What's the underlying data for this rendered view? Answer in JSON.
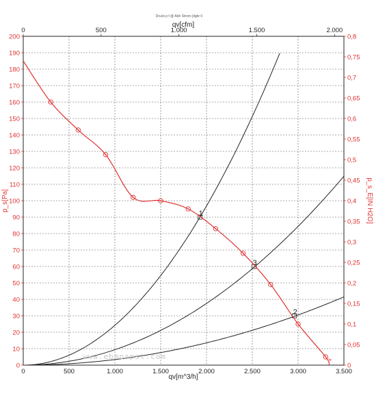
{
  "chart_data": {
    "type": "line",
    "title": "Druck p f @ Abh Strom (dgbr 0",
    "x_bottom": {
      "label": "qv[m^3/h]",
      "range": [
        0,
        3500
      ],
      "ticks": [
        0,
        500,
        1000,
        1500,
        2000,
        2500,
        3000,
        3500
      ],
      "tick_labels": [
        "0",
        "500",
        "1.000",
        "1.500",
        "2.000",
        "2.500",
        "3.000",
        "3.500"
      ]
    },
    "x_top": {
      "label": "qv[cfm]",
      "range": [
        0,
        2060
      ],
      "ticks": [
        0,
        500,
        1000,
        1500,
        2000
      ],
      "tick_labels": [
        "0",
        "500",
        "1.000",
        "1.500",
        "2.000"
      ]
    },
    "y_left": {
      "label": "p_s[Pa]",
      "range": [
        0,
        200
      ],
      "ticks": [
        0,
        10,
        20,
        30,
        40,
        50,
        60,
        70,
        80,
        90,
        100,
        110,
        120,
        130,
        140,
        150,
        160,
        170,
        180,
        190,
        200
      ],
      "tick_labels": [
        "0",
        "10",
        "20",
        "30",
        "40",
        "50",
        "60",
        "70",
        "80",
        "90",
        "100",
        "110",
        "120",
        "130",
        "140",
        "150",
        "160",
        "170",
        "180",
        "190",
        "200"
      ]
    },
    "y_right": {
      "label": "p_s_E[IN H2O]",
      "range": [
        0,
        0.8
      ],
      "ticks": [
        0,
        0.05,
        0.1,
        0.15,
        0.2,
        0.25,
        0.3,
        0.35,
        0.4,
        0.45,
        0.5,
        0.55,
        0.6,
        0.65,
        0.7,
        0.75,
        0.8
      ],
      "tick_labels": [
        "0",
        "0,05",
        "0,1",
        "0,15",
        "0,2",
        "0,25",
        "0,3",
        "0,35",
        "0,4",
        "0,45",
        "0,5",
        "0,55",
        "0,6",
        "0,65",
        "0,7",
        "0,75",
        "0,8"
      ]
    },
    "grid": true,
    "fan_curve": {
      "color": "#e03030",
      "x": [
        0,
        300,
        600,
        900,
        1200,
        1500,
        1800,
        2100,
        2400,
        2700,
        3000,
        3300,
        3340
      ],
      "y": [
        185,
        160,
        143,
        128,
        102,
        100,
        95,
        83,
        68,
        49,
        25,
        5,
        0
      ],
      "markers_x": [
        300,
        600,
        900,
        1200,
        1500,
        1800,
        2100,
        2400,
        2700,
        3000,
        3300
      ],
      "markers_y": [
        160,
        143,
        128,
        102,
        100,
        95,
        83,
        68,
        49,
        25,
        5
      ]
    },
    "system_curves": [
      {
        "point_label": "1",
        "k": 2.42e-05,
        "x_end": 2800,
        "operating_point": [
          1930,
          90
        ]
      },
      {
        "point_label": "3",
        "k": 9.38e-06,
        "x_end": 3500,
        "operating_point": [
          2520,
          60
        ]
      },
      {
        "point_label": "2",
        "k": 3.39e-06,
        "x_end": 3500,
        "operating_point": [
          2960,
          30
        ]
      }
    ],
    "curve_end_label": "4",
    "watermark": "www.ebmpapst.com"
  },
  "colors": {
    "red": "#e03030",
    "black": "#222222",
    "grid": "#555555"
  }
}
